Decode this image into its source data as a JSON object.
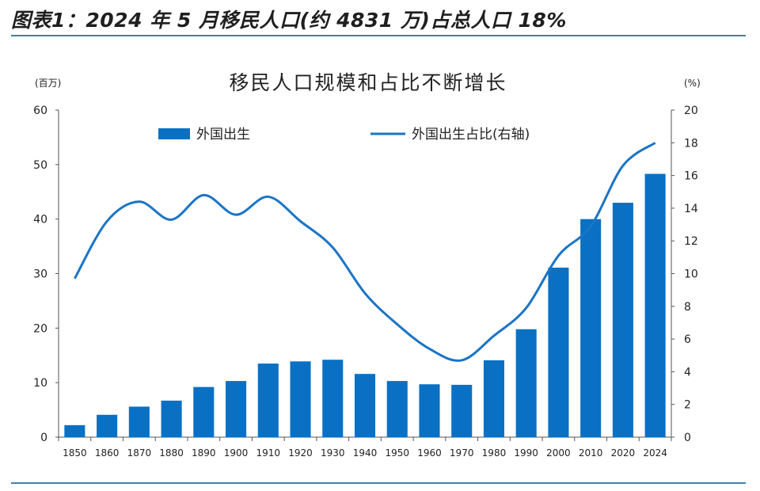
{
  "figure_title": "图表1：2024 年 5 月移民人口(约 4831 万)占总人口 18%",
  "colors": {
    "bar": "#0a70c4",
    "line": "#1b74c6",
    "rule": "#3f7fb0"
  },
  "chart_data": {
    "type": "bar",
    "title": "移民人口规模和占比不断增长",
    "left_unit": "(百万)",
    "right_unit": "(%)",
    "categories": [
      "1850",
      "1860",
      "1870",
      "1880",
      "1890",
      "1900",
      "1910",
      "1920",
      "1930",
      "1940",
      "1950",
      "1960",
      "1970",
      "1980",
      "1990",
      "2000",
      "2010",
      "2020",
      "2024"
    ],
    "series": [
      {
        "name": "外国出生",
        "type": "bar",
        "axis": "left",
        "values": [
          2.2,
          4.1,
          5.6,
          6.7,
          9.2,
          10.3,
          13.5,
          13.9,
          14.2,
          11.6,
          10.3,
          9.7,
          9.6,
          14.1,
          19.8,
          31.1,
          40.0,
          43.0,
          48.3
        ]
      },
      {
        "name": "外国出生占比(右轴)",
        "type": "line",
        "axis": "right",
        "values": [
          9.7,
          13.2,
          14.4,
          13.3,
          14.8,
          13.6,
          14.7,
          13.2,
          11.6,
          8.8,
          6.9,
          5.4,
          4.7,
          6.2,
          7.9,
          11.1,
          12.9,
          16.6,
          18.0
        ]
      }
    ],
    "y_left": {
      "min": 0,
      "max": 60,
      "ticks": [
        0,
        10,
        20,
        30,
        40,
        50,
        60
      ]
    },
    "y_right": {
      "min": 0,
      "max": 20,
      "ticks": [
        0,
        2,
        4,
        6,
        8,
        10,
        12,
        14,
        16,
        18,
        20
      ]
    },
    "legend_position": "top",
    "grid": false
  }
}
